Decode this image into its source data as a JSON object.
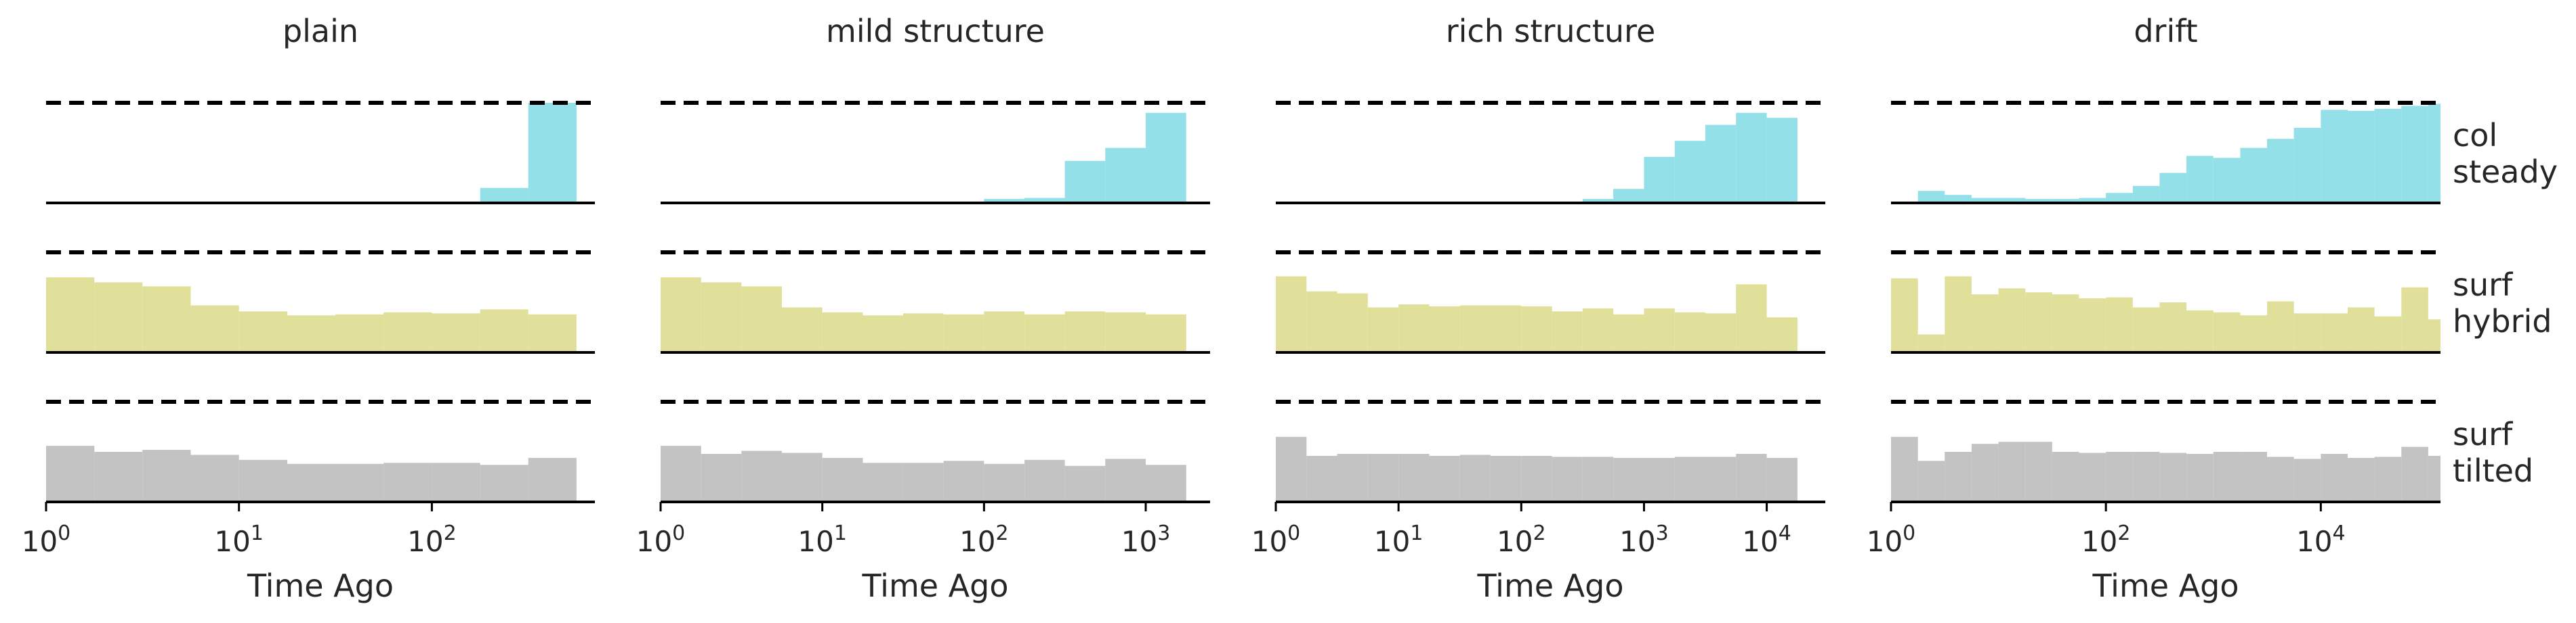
{
  "figure": {
    "colors": {
      "col_steady": "#8adde6",
      "surf_hybrid": "#dddd91",
      "surf_tilted": "#bebebe",
      "axis": "#000000"
    },
    "row_labels": [
      {
        "line1": "col",
        "line2": "steady"
      },
      {
        "line1": "surf",
        "line2": "hybrid"
      },
      {
        "line1": "surf",
        "line2": "tilted"
      }
    ],
    "xlabel": "Time Ago"
  },
  "chart_data": [
    {
      "type": "area",
      "title": "plain",
      "xlabel": "Time Ago",
      "x_scale": "log",
      "xlim": [
        1,
        700
      ],
      "xticks": [
        {
          "v": 1,
          "base": "10",
          "exp": "0"
        },
        {
          "v": 10,
          "base": "10",
          "exp": "1"
        },
        {
          "v": 100,
          "base": "10",
          "exp": "2"
        }
      ],
      "bin_edges": [
        1,
        1.78,
        3.16,
        5.62,
        10,
        17.8,
        31.6,
        56.2,
        100,
        178,
        316,
        562
      ],
      "series": [
        {
          "row": 0,
          "values": [
            null,
            null,
            null,
            null,
            null,
            null,
            null,
            null,
            null,
            0.15,
            1.0
          ]
        },
        {
          "row": 1,
          "values": [
            0.75,
            0.7,
            0.66,
            0.47,
            0.41,
            0.37,
            0.38,
            0.4,
            0.39,
            0.43,
            0.38
          ]
        },
        {
          "row": 2,
          "values": [
            0.56,
            0.5,
            0.52,
            0.47,
            0.42,
            0.38,
            0.38,
            0.39,
            0.39,
            0.37,
            0.44
          ]
        }
      ]
    },
    {
      "type": "area",
      "title": "mild structure",
      "xlabel": "Time Ago",
      "x_scale": "log",
      "xlim": [
        1,
        2500
      ],
      "xticks": [
        {
          "v": 1,
          "base": "10",
          "exp": "0"
        },
        {
          "v": 10,
          "base": "10",
          "exp": "1"
        },
        {
          "v": 100,
          "base": "10",
          "exp": "2"
        },
        {
          "v": 1000,
          "base": "10",
          "exp": "3"
        }
      ],
      "bin_edges": [
        1,
        1.78,
        3.16,
        5.62,
        10,
        17.8,
        31.6,
        56.2,
        100,
        178,
        316,
        562,
        1000,
        1780
      ],
      "series": [
        {
          "row": 0,
          "values": [
            null,
            null,
            null,
            null,
            null,
            null,
            null,
            null,
            0.04,
            0.05,
            0.42,
            0.55,
            0.9
          ]
        },
        {
          "row": 1,
          "values": [
            0.75,
            0.7,
            0.66,
            0.45,
            0.4,
            0.37,
            0.39,
            0.38,
            0.41,
            0.38,
            0.41,
            0.4,
            0.38
          ]
        },
        {
          "row": 2,
          "values": [
            0.56,
            0.48,
            0.51,
            0.49,
            0.44,
            0.39,
            0.39,
            0.41,
            0.38,
            0.42,
            0.36,
            0.43,
            0.37
          ]
        }
      ]
    },
    {
      "type": "area",
      "title": "rich structure",
      "xlabel": "Time Ago",
      "x_scale": "log",
      "xlim": [
        1,
        30000
      ],
      "xticks": [
        {
          "v": 1,
          "base": "10",
          "exp": "0"
        },
        {
          "v": 10,
          "base": "10",
          "exp": "1"
        },
        {
          "v": 100,
          "base": "10",
          "exp": "2"
        },
        {
          "v": 1000,
          "base": "10",
          "exp": "3"
        },
        {
          "v": 10000,
          "base": "10",
          "exp": "4"
        }
      ],
      "bin_edges": [
        1,
        1.78,
        3.16,
        5.62,
        10,
        17.8,
        31.6,
        56.2,
        100,
        178,
        316,
        562,
        1000,
        1780,
        3160,
        5620,
        10000,
        17800
      ],
      "series": [
        {
          "row": 0,
          "values": [
            null,
            null,
            null,
            null,
            null,
            null,
            null,
            null,
            null,
            null,
            0.04,
            0.14,
            0.46,
            0.62,
            0.78,
            0.9,
            0.85
          ]
        },
        {
          "row": 1,
          "values": [
            0.76,
            0.61,
            0.59,
            0.45,
            0.48,
            0.46,
            0.47,
            0.47,
            0.46,
            0.41,
            0.44,
            0.38,
            0.44,
            0.4,
            0.39,
            0.68,
            0.35
          ]
        },
        {
          "row": 2,
          "values": [
            0.65,
            0.46,
            0.48,
            0.48,
            0.48,
            0.46,
            0.47,
            0.46,
            0.46,
            0.45,
            0.45,
            0.44,
            0.44,
            0.45,
            0.45,
            0.48,
            0.44
          ]
        }
      ]
    },
    {
      "type": "area",
      "title": "drift",
      "xlabel": "Time Ago",
      "x_scale": "log",
      "xlim": [
        1,
        130000
      ],
      "xticks": [
        {
          "v": 1,
          "base": "10",
          "exp": "0"
        },
        {
          "v": 100,
          "base": "10",
          "exp": "2"
        },
        {
          "v": 10000,
          "base": "10",
          "exp": "4"
        }
      ],
      "bin_edges": [
        1,
        1.78,
        3.16,
        5.62,
        10,
        17.8,
        31.6,
        56.2,
        100,
        178,
        316,
        562,
        1000,
        1780,
        3160,
        5620,
        10000,
        17800,
        31600,
        56200,
        100000,
        130000
      ],
      "series": [
        {
          "row": 0,
          "values": [
            null,
            0.12,
            0.08,
            0.05,
            0.05,
            0.04,
            0.04,
            0.05,
            0.1,
            0.17,
            0.3,
            0.47,
            0.45,
            0.55,
            0.64,
            0.75,
            0.93,
            0.92,
            0.94,
            0.97,
            0.99
          ]
        },
        {
          "row": 1,
          "values": [
            0.74,
            0.18,
            0.76,
            0.58,
            0.64,
            0.6,
            0.58,
            0.54,
            0.55,
            0.45,
            0.5,
            0.42,
            0.4,
            0.37,
            0.51,
            0.39,
            0.39,
            0.45,
            0.36,
            0.65,
            0.33
          ]
        },
        {
          "row": 2,
          "values": [
            0.65,
            0.41,
            0.5,
            0.58,
            0.6,
            0.6,
            0.5,
            0.49,
            0.5,
            0.5,
            0.49,
            0.48,
            0.5,
            0.5,
            0.45,
            0.43,
            0.48,
            0.44,
            0.45,
            0.55,
            0.46
          ]
        }
      ]
    }
  ]
}
